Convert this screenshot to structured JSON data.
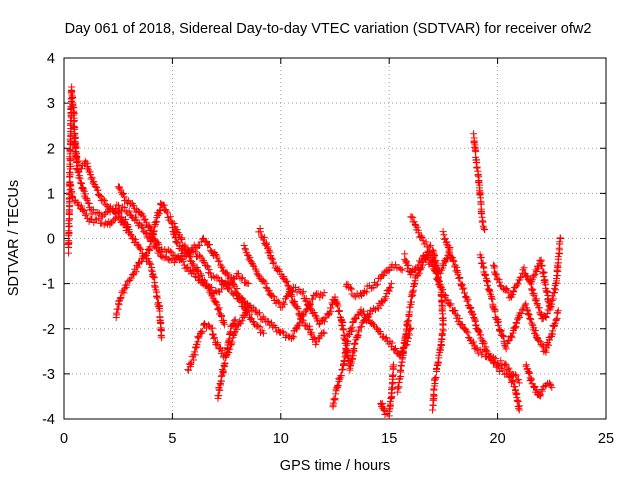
{
  "chart_data": {
    "type": "scatter",
    "title": "Day 061 of 2018, Sidereal Day-to-day VTEC variation (SDTVAR) for receiver ofw2",
    "xlabel": "GPS time / hours",
    "ylabel": "SDTVAR / TECUs",
    "xlim": [
      0,
      25
    ],
    "ylim": [
      -4,
      4
    ],
    "xticks": [
      0,
      5,
      10,
      15,
      20,
      25
    ],
    "yticks": [
      -4,
      -3,
      -2,
      -1,
      0,
      1,
      2,
      3,
      4
    ],
    "grid": true,
    "marker": "+",
    "color": "#ff0000",
    "tracks": [
      [
        [
          0.2,
          -0.3
        ],
        [
          0.25,
          0.8
        ],
        [
          0.3,
          2.2
        ],
        [
          0.35,
          3.3
        ],
        [
          0.45,
          2.8
        ],
        [
          0.5,
          2.0
        ],
        [
          0.6,
          1.6
        ],
        [
          0.8,
          1.2
        ],
        [
          1.0,
          0.9
        ],
        [
          1.3,
          0.6
        ],
        [
          1.7,
          0.5
        ],
        [
          2.0,
          0.6
        ],
        [
          2.5,
          0.7
        ],
        [
          3.0,
          0.6
        ],
        [
          3.5,
          0.3
        ],
        [
          4.0,
          0.0
        ],
        [
          4.5,
          -0.4
        ],
        [
          5.0,
          -0.5
        ],
        [
          5.5,
          -0.4
        ],
        [
          6.0,
          -0.2
        ],
        [
          6.5,
          0.0
        ],
        [
          7.0,
          -0.4
        ],
        [
          7.5,
          -0.8
        ],
        [
          8.0,
          -1.2
        ],
        [
          8.5,
          -1.5
        ],
        [
          9.0,
          -1.7
        ],
        [
          9.5,
          -1.9
        ],
        [
          10.0,
          -2.1
        ],
        [
          10.5,
          -2.2
        ],
        [
          11.0,
          -1.7
        ],
        [
          11.5,
          -1.3
        ],
        [
          12.0,
          -1.2
        ]
      ],
      [
        [
          0.3,
          1.2
        ],
        [
          0.4,
          0.9
        ],
        [
          0.6,
          0.8
        ],
        [
          0.9,
          0.6
        ],
        [
          1.2,
          0.4
        ],
        [
          1.6,
          0.4
        ],
        [
          2.0,
          0.3
        ],
        [
          2.4,
          0.5
        ],
        [
          2.8,
          0.3
        ],
        [
          3.2,
          0.0
        ],
        [
          3.6,
          -0.3
        ],
        [
          4.0,
          -0.6
        ],
        [
          4.2,
          -1.0
        ],
        [
          4.4,
          -1.6
        ],
        [
          4.5,
          -2.2
        ]
      ],
      [
        [
          0.5,
          2.3
        ],
        [
          0.6,
          1.7
        ],
        [
          0.8,
          1.6
        ],
        [
          1.0,
          1.7
        ],
        [
          1.3,
          1.3
        ],
        [
          1.6,
          1.0
        ],
        [
          2.0,
          0.7
        ],
        [
          2.4,
          0.6
        ],
        [
          2.8,
          0.4
        ],
        [
          3.0,
          0.2
        ]
      ],
      [
        [
          2.4,
          -1.7
        ],
        [
          2.6,
          -1.3
        ],
        [
          2.9,
          -1.0
        ],
        [
          3.2,
          -0.8
        ],
        [
          3.5,
          -0.5
        ],
        [
          3.9,
          -0.3
        ],
        [
          4.2,
          0.3
        ],
        [
          4.5,
          0.8
        ],
        [
          4.8,
          0.5
        ],
        [
          5.2,
          0.2
        ],
        [
          5.6,
          -0.2
        ],
        [
          6.0,
          -0.6
        ],
        [
          6.5,
          -1.0
        ],
        [
          7.0,
          -1.4
        ],
        [
          7.4,
          -1.9
        ]
      ],
      [
        [
          2.5,
          1.2
        ],
        [
          2.8,
          0.9
        ],
        [
          3.2,
          0.7
        ],
        [
          3.6,
          0.5
        ],
        [
          4.0,
          0.2
        ],
        [
          4.4,
          -0.2
        ],
        [
          4.8,
          -0.3
        ],
        [
          5.2,
          -0.4
        ],
        [
          5.6,
          -0.6
        ],
        [
          6.0,
          -0.8
        ],
        [
          6.5,
          -1.0
        ],
        [
          7.0,
          -1.2
        ],
        [
          7.5,
          -1.0
        ],
        [
          8.0,
          -0.8
        ],
        [
          8.5,
          -1.0
        ]
      ],
      [
        [
          5.7,
          -2.9
        ],
        [
          6.0,
          -2.6
        ],
        [
          6.2,
          -2.2
        ],
        [
          6.5,
          -1.9
        ],
        [
          6.8,
          -2.0
        ],
        [
          7.0,
          -2.3
        ],
        [
          7.4,
          -2.6
        ],
        [
          7.7,
          -2.4
        ],
        [
          7.9,
          -2.0
        ],
        [
          8.2,
          -1.8
        ],
        [
          8.5,
          -1.5
        ]
      ],
      [
        [
          7.1,
          -3.5
        ],
        [
          7.3,
          -3.0
        ],
        [
          7.5,
          -2.6
        ],
        [
          7.7,
          -2.0
        ],
        [
          7.9,
          -1.8
        ]
      ],
      [
        [
          5.0,
          0.2
        ],
        [
          5.2,
          -0.1
        ],
        [
          5.5,
          -0.3
        ],
        [
          6.0,
          -0.3
        ],
        [
          6.4,
          -0.5
        ],
        [
          6.8,
          -0.8
        ],
        [
          7.2,
          -0.9
        ],
        [
          7.6,
          -1.1
        ],
        [
          8.0,
          -1.3
        ],
        [
          8.4,
          -1.6
        ],
        [
          8.8,
          -1.9
        ],
        [
          9.2,
          -2.1
        ]
      ],
      [
        [
          8.3,
          -0.2
        ],
        [
          8.6,
          -0.5
        ],
        [
          9.0,
          -0.8
        ],
        [
          9.3,
          -1.0
        ],
        [
          9.6,
          -1.3
        ],
        [
          10.0,
          -1.5
        ],
        [
          10.3,
          -1.3
        ],
        [
          10.6,
          -1.1
        ],
        [
          11.0,
          -1.2
        ],
        [
          11.4,
          -1.6
        ],
        [
          11.8,
          -1.9
        ],
        [
          12.2,
          -1.7
        ],
        [
          12.5,
          -1.3
        ]
      ],
      [
        [
          9.0,
          0.2
        ],
        [
          9.3,
          -0.1
        ],
        [
          9.6,
          -0.5
        ],
        [
          10.0,
          -0.8
        ],
        [
          10.3,
          -1.0
        ],
        [
          10.6,
          -1.4
        ],
        [
          11.0,
          -1.8
        ],
        [
          11.3,
          -2.0
        ],
        [
          11.6,
          -2.3
        ],
        [
          12.0,
          -2.1
        ]
      ],
      [
        [
          12.5,
          -1.3
        ],
        [
          12.8,
          -1.8
        ],
        [
          13.0,
          -2.4
        ],
        [
          13.2,
          -2.9
        ],
        [
          13.4,
          -2.4
        ],
        [
          13.6,
          -2.0
        ],
        [
          13.9,
          -1.8
        ],
        [
          14.2,
          -1.6
        ],
        [
          14.5,
          -1.5
        ],
        [
          14.8,
          -1.3
        ],
        [
          15.1,
          -1.0
        ]
      ],
      [
        [
          12.4,
          -3.7
        ],
        [
          12.6,
          -3.3
        ],
        [
          12.9,
          -2.8
        ],
        [
          13.1,
          -2.2
        ],
        [
          13.4,
          -1.8
        ],
        [
          13.7,
          -1.6
        ],
        [
          14.0,
          -1.8
        ],
        [
          14.4,
          -2.0
        ],
        [
          14.8,
          -2.2
        ],
        [
          15.2,
          -2.4
        ],
        [
          15.5,
          -2.6
        ],
        [
          15.8,
          -2.3
        ],
        [
          16.0,
          -2.0
        ]
      ],
      [
        [
          13.0,
          -1.0
        ],
        [
          13.3,
          -1.2
        ],
        [
          13.6,
          -1.3
        ],
        [
          14.0,
          -1.1
        ],
        [
          14.4,
          -1.0
        ],
        [
          14.8,
          -0.8
        ],
        [
          15.2,
          -0.6
        ],
        [
          15.6,
          -0.7
        ]
      ],
      [
        [
          14.6,
          -3.6
        ],
        [
          14.8,
          -3.9
        ],
        [
          15.0,
          -3.9
        ],
        [
          15.1,
          -3.5
        ],
        [
          15.2,
          -2.8
        ]
      ],
      [
        [
          15.4,
          -3.4
        ],
        [
          15.6,
          -2.7
        ],
        [
          15.8,
          -2.0
        ],
        [
          16.0,
          -1.4
        ],
        [
          16.2,
          -0.9
        ],
        [
          16.5,
          -0.6
        ],
        [
          16.8,
          -0.3
        ],
        [
          17.0,
          -0.5
        ],
        [
          17.3,
          -0.8
        ],
        [
          17.6,
          -0.5
        ],
        [
          17.8,
          -0.2
        ]
      ],
      [
        [
          15.7,
          -0.4
        ],
        [
          16.0,
          -0.8
        ],
        [
          16.3,
          -0.6
        ],
        [
          16.6,
          -0.4
        ],
        [
          17.0,
          -0.6
        ],
        [
          17.3,
          -1.0
        ],
        [
          17.6,
          -1.3
        ],
        [
          18.0,
          -1.6
        ],
        [
          18.3,
          -1.9
        ],
        [
          18.7,
          -2.2
        ],
        [
          19.1,
          -2.5
        ],
        [
          19.5,
          -2.6
        ],
        [
          19.9,
          -2.7
        ],
        [
          20.3,
          -2.8
        ],
        [
          20.7,
          -3.0
        ],
        [
          21.0,
          -3.2
        ]
      ],
      [
        [
          16.0,
          0.5
        ],
        [
          16.3,
          0.2
        ],
        [
          16.6,
          -0.1
        ],
        [
          17.0,
          -0.2
        ],
        [
          17.2,
          -0.7
        ],
        [
          17.4,
          -1.2
        ],
        [
          17.5,
          -2.0
        ],
        [
          17.3,
          -2.6
        ],
        [
          17.1,
          -3.2
        ],
        [
          17.0,
          -3.8
        ]
      ],
      [
        [
          17.5,
          0.1
        ],
        [
          17.8,
          -0.3
        ],
        [
          18.1,
          -0.7
        ],
        [
          18.4,
          -1.1
        ],
        [
          18.7,
          -1.5
        ],
        [
          19.0,
          -1.9
        ],
        [
          19.3,
          -2.3
        ],
        [
          19.7,
          -2.7
        ],
        [
          20.1,
          -2.9
        ],
        [
          20.5,
          -3.0
        ],
        [
          20.8,
          -3.3
        ],
        [
          21.0,
          -3.8
        ]
      ],
      [
        [
          18.9,
          2.3
        ],
        [
          19.0,
          1.8
        ],
        [
          19.2,
          1.0
        ],
        [
          19.3,
          0.4
        ],
        [
          19.4,
          0.2
        ]
      ],
      [
        [
          19.2,
          -0.4
        ],
        [
          19.5,
          -0.9
        ],
        [
          19.8,
          -1.5
        ],
        [
          20.1,
          -2.0
        ],
        [
          20.4,
          -2.4
        ],
        [
          20.7,
          -2.1
        ],
        [
          21.0,
          -1.7
        ],
        [
          21.3,
          -1.5
        ],
        [
          21.6,
          -1.9
        ],
        [
          21.9,
          -2.3
        ],
        [
          22.2,
          -2.5
        ],
        [
          22.5,
          -2.1
        ],
        [
          22.8,
          -1.6
        ]
      ],
      [
        [
          19.8,
          -0.6
        ],
        [
          20.0,
          -0.9
        ],
        [
          20.3,
          -1.1
        ],
        [
          20.6,
          -1.3
        ],
        [
          20.9,
          -1.0
        ],
        [
          21.2,
          -0.7
        ],
        [
          21.5,
          -1.0
        ],
        [
          21.8,
          -1.4
        ],
        [
          22.1,
          -1.8
        ],
        [
          22.4,
          -1.6
        ],
        [
          22.7,
          -1.0
        ],
        [
          22.9,
          0.0
        ]
      ],
      [
        [
          21.3,
          -2.8
        ],
        [
          21.6,
          -3.2
        ],
        [
          21.9,
          -3.5
        ],
        [
          22.1,
          -3.3
        ],
        [
          22.4,
          -3.2
        ],
        [
          22.5,
          -3.3
        ]
      ],
      [
        [
          21.5,
          -1.0
        ],
        [
          21.8,
          -0.7
        ],
        [
          22.0,
          -0.5
        ],
        [
          22.2,
          -1.0
        ],
        [
          22.4,
          -1.5
        ]
      ]
    ]
  }
}
